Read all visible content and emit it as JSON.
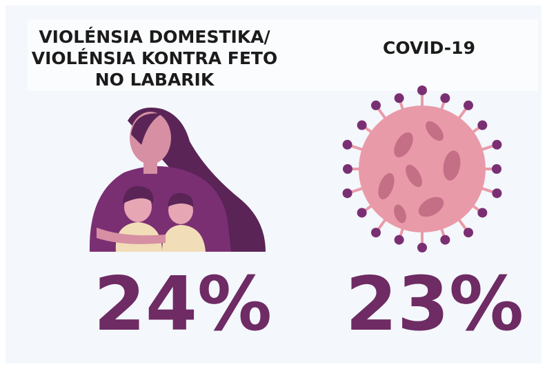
{
  "panels": [
    {
      "title_lines": [
        "VIOLÉNSIA DOMESTIKA/",
        "VIOLÉNSIA KONTRA FETO",
        "NO LABARIK"
      ],
      "figure": "24%"
    },
    {
      "title_lines": [
        "COVID-19"
      ],
      "figure": "23%"
    }
  ]
}
